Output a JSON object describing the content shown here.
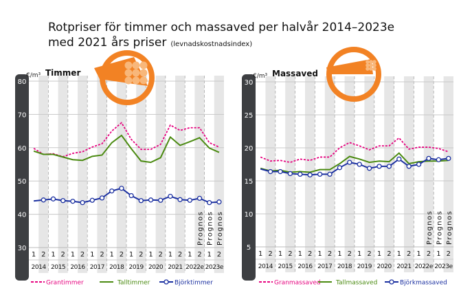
{
  "title_line1": "Rotpriser för timmer och massaved per halvår 2014–2023e",
  "title_line2": "med 2021 års priser",
  "title_note": "(levnadskostnadsindex)",
  "colors": {
    "gran": "#e6007e",
    "tall": "#4a8a10",
    "bjork": "#1a2fa0",
    "icon": "#f28224",
    "axis": "#3d3f42"
  },
  "chart_data": [
    {
      "type": "line",
      "title": "Timmer",
      "ylabel": "€/m³",
      "ylim": [
        30,
        80
      ],
      "yticks": [
        30,
        40,
        50,
        60,
        70,
        80
      ],
      "halves": [
        "1",
        "2",
        "1",
        "2",
        "1",
        "2",
        "1",
        "2",
        "1",
        "2",
        "1",
        "2",
        "1",
        "2",
        "1",
        "2",
        "1",
        "2",
        "1",
        "2"
      ],
      "years": [
        "2014",
        "2015",
        "2016",
        "2017",
        "2018",
        "2019",
        "2020",
        "2021",
        "2022e",
        "2023e"
      ],
      "forecast_label": "Prognos",
      "icon": "timber-log-icon",
      "series": [
        {
          "name": "Grantimmer",
          "style": "dashed",
          "color": "#e6007e",
          "values": [
            59.8,
            58,
            58.2,
            57.3,
            58.3,
            58.8,
            60.2,
            61.2,
            65,
            67.5,
            62.5,
            59.5,
            59.5,
            61,
            66.8,
            65.2,
            66,
            66,
            61.5,
            60.2
          ]
        },
        {
          "name": "Talltimmer",
          "style": "solid",
          "color": "#4a8a10",
          "values": [
            59,
            58,
            58,
            57.2,
            56.4,
            56.2,
            57.4,
            57.8,
            61.5,
            63.7,
            59.7,
            56,
            55.6,
            57,
            63.2,
            60.7,
            61.8,
            63,
            59.9,
            58.6
          ]
        },
        {
          "name": "Björktimmer",
          "style": "markers",
          "color": "#1a2fa0",
          "values": [
            44,
            44.3,
            44.6,
            44.1,
            43.9,
            43.5,
            44.2,
            44.9,
            47,
            47.8,
            45.6,
            44.1,
            44.3,
            44.2,
            45.4,
            44.4,
            44.2,
            44.8,
            43.5,
            43.7
          ]
        }
      ]
    },
    {
      "type": "line",
      "title": "Massaved",
      "ylabel": "€/m³",
      "ylim": [
        5,
        30
      ],
      "yticks": [
        5,
        10,
        15,
        20,
        25,
        30
      ],
      "halves": [
        "1",
        "2",
        "1",
        "2",
        "1",
        "2",
        "1",
        "2",
        "1",
        "2",
        "1",
        "2",
        "1",
        "2",
        "1",
        "2",
        "1",
        "2",
        "1",
        "2"
      ],
      "years": [
        "2014",
        "2015",
        "2016",
        "2017",
        "2018",
        "2019",
        "2020",
        "2021",
        "2022e",
        "2023e"
      ],
      "forecast_label": "Prognos",
      "icon": "pulpwood-log-icon",
      "series": [
        {
          "name": "Granmassaved",
          "style": "dashed",
          "color": "#e6007e",
          "values": [
            18.6,
            18,
            18.1,
            17.8,
            18.3,
            18.1,
            18.6,
            18.6,
            20,
            20.8,
            20.3,
            19.7,
            20.3,
            20.3,
            21.5,
            19.8,
            20.1,
            20.1,
            19.9,
            19.4
          ]
        },
        {
          "name": "Tallmassaved",
          "style": "solid",
          "color": "#4a8a10",
          "values": [
            16.9,
            16.5,
            16.6,
            16.3,
            16.4,
            16.3,
            16.7,
            16.7,
            17.6,
            18.7,
            18.3,
            17.8,
            18,
            17.9,
            19.2,
            17.6,
            17.9,
            18,
            18,
            18.1
          ]
        },
        {
          "name": "Björkmassaved",
          "style": "markers",
          "color": "#1a2fa0",
          "values": [
            16.8,
            16.4,
            16.4,
            16.1,
            16,
            15.9,
            16,
            16,
            17,
            17.8,
            17.5,
            16.9,
            17.2,
            17.2,
            18.3,
            17.2,
            17.5,
            18.4,
            18.2,
            18.4
          ]
        }
      ]
    }
  ]
}
